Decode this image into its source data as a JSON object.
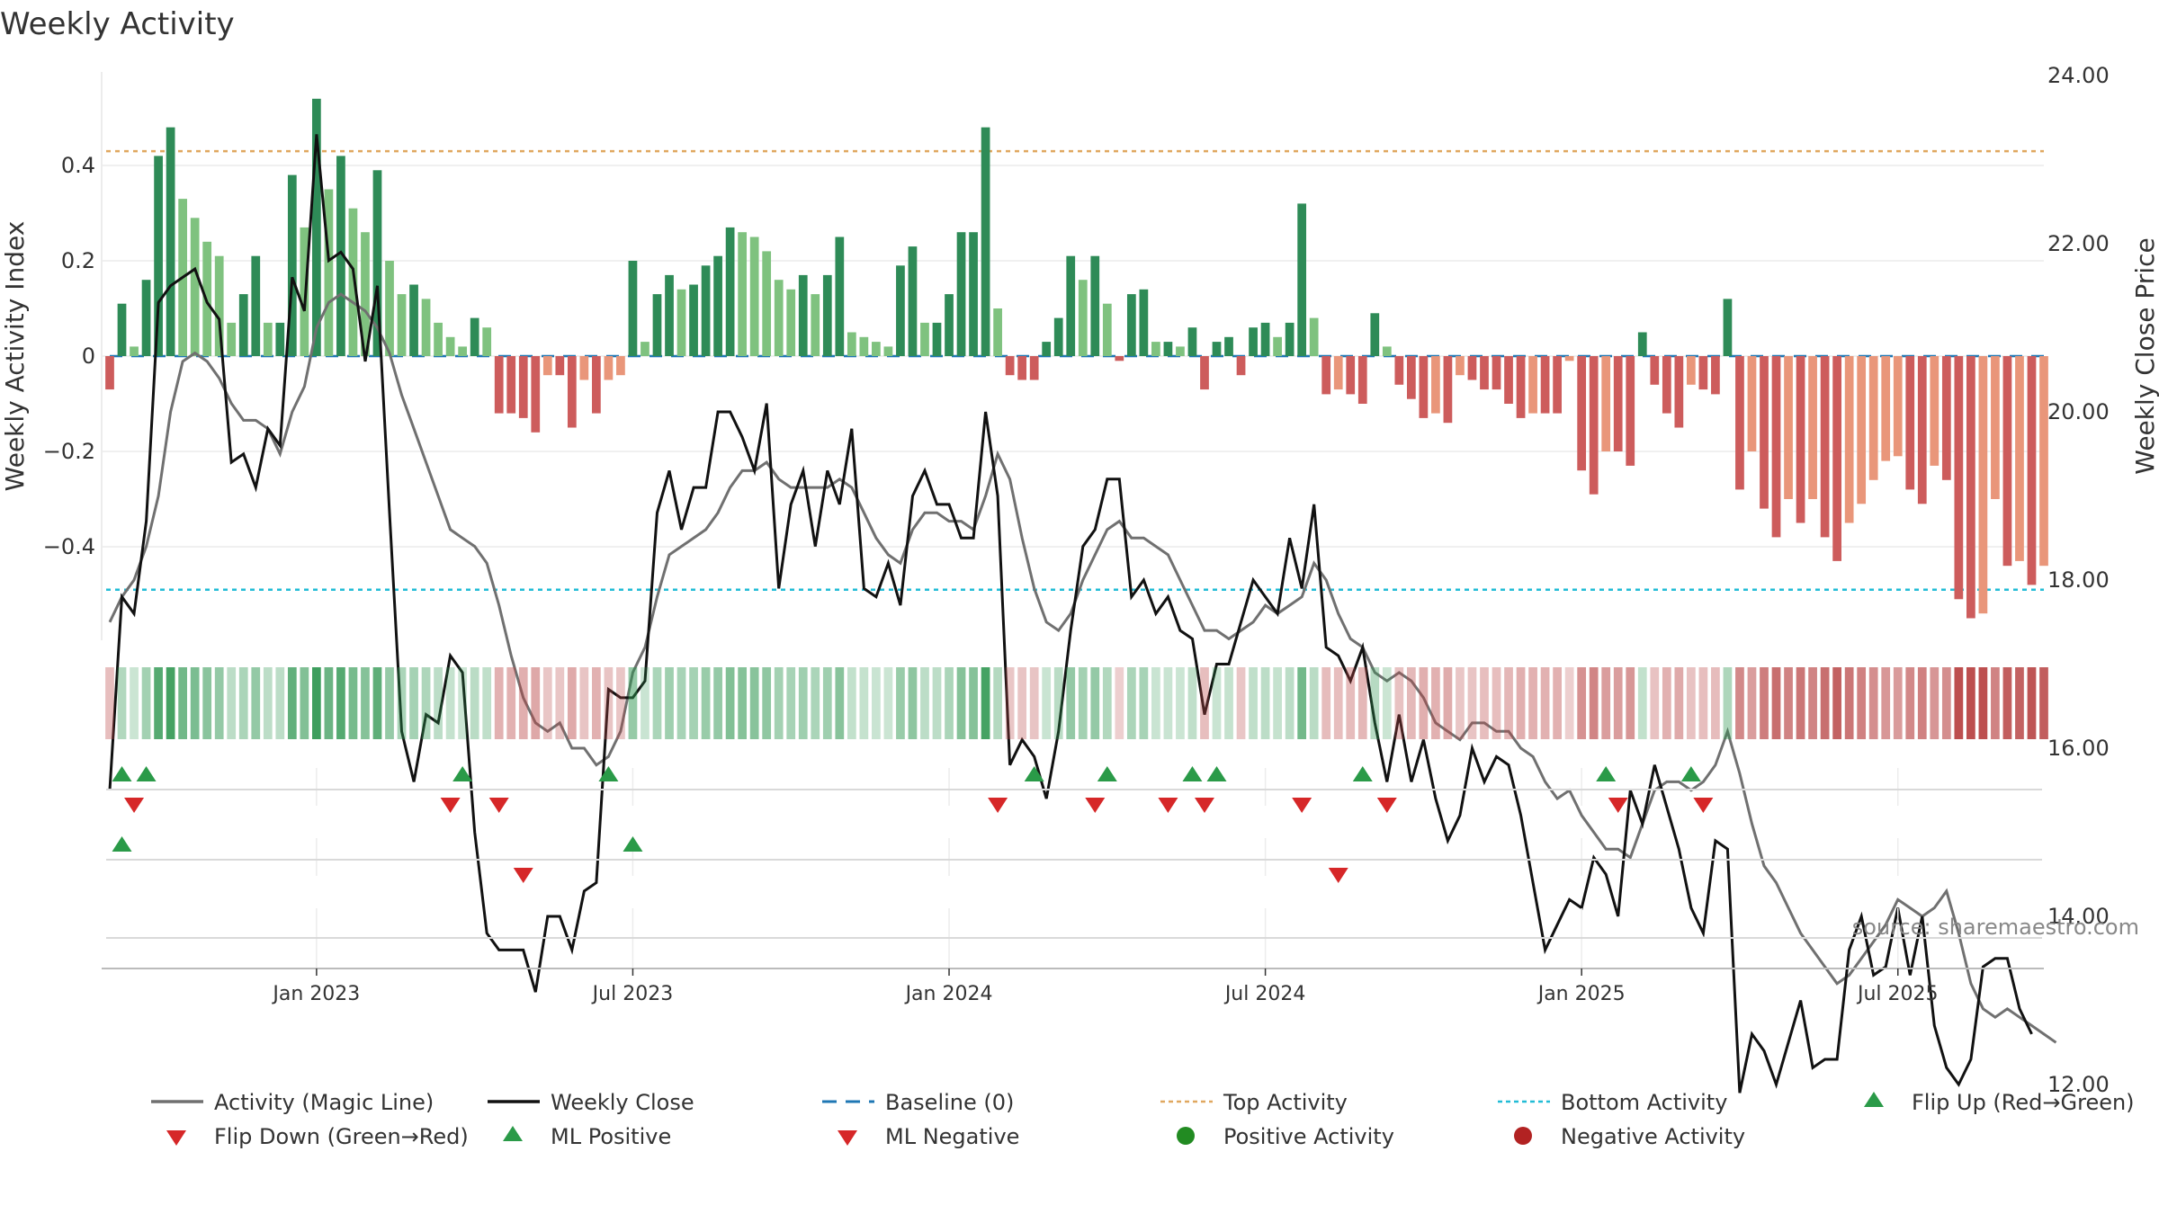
{
  "chart_data": {
    "type": "bar+line",
    "title": "Weekly Activity",
    "ylabel_left": "Weekly Activity Index",
    "ylabel_right": "Weekly Close Price",
    "ylim_left": [
      -0.6,
      0.6
    ],
    "ylim_right": [
      11.0,
      24.0
    ],
    "yticks_left": [
      {
        "value": 0.4,
        "label": "0.4"
      },
      {
        "value": 0.2,
        "label": "0.2"
      },
      {
        "value": 0,
        "label": "0"
      },
      {
        "value": -0.2,
        "label": "−0.2"
      },
      {
        "value": -0.4,
        "label": "−0.4"
      }
    ],
    "yticks_right": [
      {
        "value": 24,
        "label": "24.00"
      },
      {
        "value": 22,
        "label": "22.00"
      },
      {
        "value": 20,
        "label": "20.00"
      },
      {
        "value": 18,
        "label": "18.00"
      },
      {
        "value": 16,
        "label": "16.00"
      },
      {
        "value": 14,
        "label": "14.00"
      },
      {
        "value": 12,
        "label": "12.00"
      }
    ],
    "xticks": [
      {
        "week": 17,
        "label": "Jan 2023"
      },
      {
        "week": 43,
        "label": "Jul 2023"
      },
      {
        "week": 69,
        "label": "Jan 2024"
      },
      {
        "week": 95,
        "label": "Jul 2024"
      },
      {
        "week": 121,
        "label": "Jan 2025"
      },
      {
        "week": 147,
        "label": "Jul 2025"
      }
    ],
    "top_activity": 0.43,
    "bottom_activity": -0.49,
    "baseline": 0,
    "activity": [
      -0.07,
      0.11,
      0.02,
      0.16,
      0.42,
      0.48,
      0.33,
      0.29,
      0.24,
      0.21,
      0.07,
      0.13,
      0.21,
      0.07,
      0.07,
      0.38,
      0.27,
      0.54,
      0.35,
      0.42,
      0.31,
      0.26,
      0.39,
      0.2,
      0.13,
      0.15,
      0.12,
      0.07,
      0.04,
      0.02,
      0.08,
      0.06,
      -0.12,
      -0.12,
      -0.13,
      -0.16,
      -0.04,
      -0.04,
      -0.15,
      -0.05,
      -0.12,
      -0.05,
      -0.04,
      0.2,
      0.03,
      0.13,
      0.17,
      0.14,
      0.15,
      0.19,
      0.21,
      0.27,
      0.26,
      0.25,
      0.22,
      0.16,
      0.14,
      0.17,
      0.13,
      0.17,
      0.25,
      0.05,
      0.04,
      0.03,
      0.02,
      0.19,
      0.23,
      0.07,
      0.07,
      0.13,
      0.26,
      0.26,
      0.48,
      0.1,
      -0.04,
      -0.05,
      -0.05,
      0.03,
      0.08,
      0.21,
      0.16,
      0.21,
      0.11,
      -0.01,
      0.13,
      0.14,
      0.03,
      0.03,
      0.02,
      0.06,
      -0.07,
      0.03,
      0.04,
      -0.04,
      0.06,
      0.07,
      0.04,
      0.07,
      0.32,
      0.08,
      -0.08,
      -0.07,
      -0.08,
      -0.1,
      0.09,
      0.02,
      -0.06,
      -0.09,
      -0.13,
      -0.12,
      -0.14,
      -0.04,
      -0.05,
      -0.07,
      -0.07,
      -0.1,
      -0.13,
      -0.12,
      -0.12,
      -0.12,
      -0.01,
      -0.24,
      -0.29,
      -0.2,
      -0.2,
      -0.23,
      0.05,
      -0.06,
      -0.12,
      -0.15,
      -0.06,
      -0.07,
      -0.08,
      0.12,
      -0.28,
      -0.2,
      -0.32,
      -0.38,
      -0.3,
      -0.35,
      -0.3,
      -0.38,
      -0.43,
      -0.35,
      -0.31,
      -0.26,
      -0.22,
      -0.21,
      -0.28,
      -0.31,
      -0.23,
      -0.26,
      -0.51,
      -0.55,
      -0.54,
      -0.3,
      -0.44,
      -0.43,
      -0.48,
      -0.44
    ],
    "close": [
      15.5,
      17.8,
      17.6,
      18.7,
      21.3,
      21.5,
      21.6,
      21.7,
      21.3,
      21.1,
      19.4,
      19.5,
      19.1,
      19.8,
      19.6,
      21.6,
      21.2,
      23.3,
      21.8,
      21.9,
      21.7,
      20.6,
      21.5,
      18.8,
      16.2,
      15.6,
      16.4,
      16.3,
      17.1,
      16.9,
      15.0,
      13.8,
      13.6,
      13.6,
      13.6,
      13.1,
      14.0,
      14.0,
      13.6,
      14.3,
      14.4,
      16.7,
      16.6,
      16.6,
      16.8,
      18.8,
      19.3,
      18.6,
      19.1,
      19.1,
      20.0,
      20.0,
      19.7,
      19.3,
      20.1,
      17.9,
      18.9,
      19.3,
      18.4,
      19.3,
      18.9,
      19.8,
      17.9,
      17.8,
      18.2,
      17.7,
      19.0,
      19.3,
      18.9,
      18.9,
      18.5,
      18.5,
      20.0,
      19.0,
      15.8,
      16.1,
      15.9,
      15.4,
      16.2,
      17.4,
      18.4,
      18.6,
      19.2,
      19.2,
      17.8,
      18.0,
      17.6,
      17.8,
      17.4,
      17.3,
      16.4,
      17.0,
      17.0,
      17.5,
      18.0,
      17.8,
      17.6,
      18.5,
      17.9,
      18.9,
      17.2,
      17.1,
      16.8,
      17.2,
      16.3,
      15.6,
      16.4,
      15.6,
      16.1,
      15.4,
      14.9,
      15.2,
      16.0,
      15.6,
      15.9,
      15.8,
      15.2,
      14.4,
      13.6,
      13.9,
      14.2,
      14.1,
      14.7,
      14.5,
      14.0,
      15.5,
      15.1,
      15.8,
      15.3,
      14.8,
      14.1,
      13.8,
      14.9,
      14.8,
      11.9,
      12.6,
      12.4,
      12.0,
      12.5,
      13.0,
      12.2,
      12.3,
      12.3,
      13.6,
      14.0,
      13.3,
      13.4,
      14.1,
      13.3,
      14.0,
      12.7,
      12.2,
      12.0,
      12.3,
      13.4,
      13.5,
      13.5,
      12.9,
      12.6
    ],
    "magic": [
      17.5,
      17.8,
      18.0,
      18.4,
      19.0,
      20.0,
      20.6,
      20.7,
      20.6,
      20.4,
      20.1,
      19.9,
      19.9,
      19.8,
      19.5,
      20.0,
      20.3,
      21.0,
      21.3,
      21.4,
      21.3,
      21.2,
      21.0,
      20.7,
      20.2,
      19.8,
      19.4,
      19.0,
      18.6,
      18.5,
      18.4,
      18.2,
      17.7,
      17.1,
      16.6,
      16.3,
      16.2,
      16.3,
      16.0,
      16.0,
      15.8,
      15.9,
      16.2,
      16.9,
      17.2,
      17.8,
      18.3,
      18.4,
      18.5,
      18.6,
      18.8,
      19.1,
      19.3,
      19.3,
      19.4,
      19.2,
      19.1,
      19.1,
      19.1,
      19.1,
      19.2,
      19.1,
      18.8,
      18.5,
      18.3,
      18.2,
      18.6,
      18.8,
      18.8,
      18.7,
      18.7,
      18.6,
      19.0,
      19.5,
      19.2,
      18.5,
      17.9,
      17.5,
      17.4,
      17.6,
      18.0,
      18.3,
      18.6,
      18.7,
      18.5,
      18.5,
      18.4,
      18.3,
      18.0,
      17.7,
      17.4,
      17.4,
      17.3,
      17.4,
      17.5,
      17.7,
      17.6,
      17.7,
      17.8,
      18.2,
      18.0,
      17.6,
      17.3,
      17.2,
      16.9,
      16.8,
      16.9,
      16.8,
      16.6,
      16.3,
      16.2,
      16.1,
      16.3,
      16.3,
      16.2,
      16.2,
      16.0,
      15.9,
      15.6,
      15.4,
      15.5,
      15.2,
      15.0,
      14.8,
      14.8,
      14.7,
      15.1,
      15.5,
      15.6,
      15.6,
      15.5,
      15.6,
      15.8,
      16.2,
      15.7,
      15.1,
      14.6,
      14.4,
      14.1,
      13.8,
      13.6,
      13.4,
      13.2,
      13.3,
      13.5,
      13.7,
      13.9,
      14.2,
      14.1,
      14.0,
      14.1,
      14.3,
      13.8,
      13.2,
      12.9,
      12.8,
      12.9,
      12.8,
      12.7,
      12.6,
      12.5
    ],
    "flip_up": [
      1,
      3,
      29,
      41,
      76,
      82,
      89,
      91,
      103,
      123,
      130
    ],
    "flip_down": [
      2,
      28,
      32,
      73,
      81,
      87,
      90,
      98,
      105,
      124,
      131
    ],
    "ml_positive": [
      1,
      43
    ],
    "ml_negative": [
      34,
      101
    ],
    "source": "source: sharemaestro.com",
    "legend": [
      "Activity (Magic Line)",
      "Weekly Close",
      "Baseline (0)",
      "Top Activity",
      "Bottom Activity",
      "Flip Up (Red→Green)",
      "Flip Down (Green→Red)",
      "ML Positive",
      "ML Negative",
      "Positive Activity",
      "Negative Activity"
    ],
    "colors": {
      "pos_strong": "#2e8b57",
      "pos_light": "#7fc27f",
      "neg_strong": "#cd5c5c",
      "neg_light": "#e9967a",
      "magic": "#707070",
      "close": "#111111",
      "baseline": "#1f77b4",
      "top": "#e0a860",
      "bottom": "#22bcd6",
      "up": "#2a9a48",
      "down": "#d62728",
      "pos_dot": "#228b22",
      "neg_dot": "#b22222"
    }
  }
}
